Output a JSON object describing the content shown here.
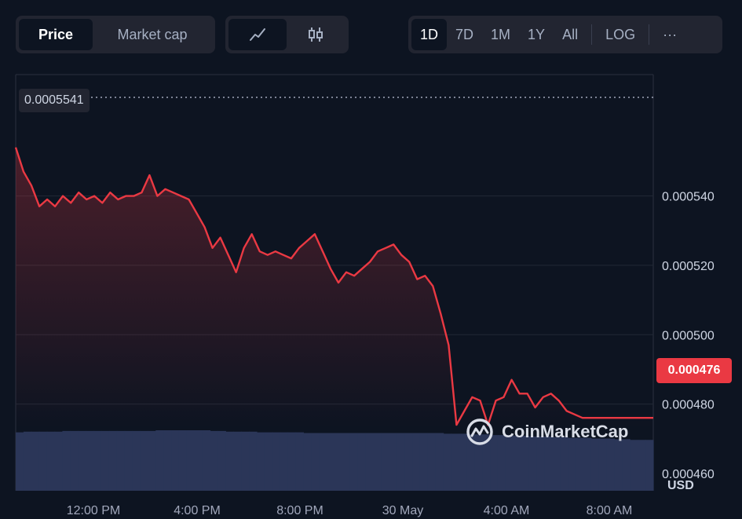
{
  "toolbar": {
    "type_tabs": [
      {
        "label": "Price",
        "active": true
      },
      {
        "label": "Market cap",
        "active": false
      }
    ],
    "style_buttons": [
      {
        "icon": "line-chart-icon",
        "active": true
      },
      {
        "icon": "candlestick-chart-icon",
        "active": false
      }
    ],
    "range_tabs": [
      {
        "label": "1D",
        "active": true
      },
      {
        "label": "7D",
        "active": false
      },
      {
        "label": "1M",
        "active": false
      },
      {
        "label": "1Y",
        "active": false
      },
      {
        "label": "All",
        "active": false
      }
    ],
    "log_label": "LOG",
    "more_label": "···"
  },
  "price_marker": "0.0005541",
  "last_price": "0.000476",
  "watermark": "CoinMarketCap",
  "currency": "USD",
  "colors": {
    "background": "#0d1421",
    "line": "#ea3943",
    "volume": "#2b3658",
    "badge": "#ea3943"
  },
  "chart_data": {
    "type": "area",
    "title": "",
    "xlabel": "",
    "ylabel": "",
    "y_ticks": [
      "0.000540",
      "0.000520",
      "0.000500",
      "0.000480",
      "0.000460"
    ],
    "x_ticks": [
      "12:00 PM",
      "4:00 PM",
      "8:00 PM",
      "30 May",
      "4:00 AM",
      "8:00 AM"
    ],
    "ylim": [
      0.000455,
      0.000575
    ],
    "grid": true,
    "series": [
      {
        "x_hours": [
          0,
          0.2,
          0.4,
          0.7,
          1.0,
          1.3,
          1.6,
          1.9,
          2.2,
          2.5,
          2.8,
          3.1,
          3.4,
          3.7,
          4.0,
          4.3,
          4.6,
          4.9,
          5.2,
          5.5,
          5.8,
          6.1,
          6.4,
          6.7,
          7.0,
          7.3,
          7.6,
          7.9,
          8.2,
          8.5,
          8.8,
          9.1,
          9.4,
          9.7,
          10.0,
          10.3,
          10.6,
          10.9,
          11.2,
          11.5,
          11.8,
          12.1,
          12.4,
          12.7,
          13.0,
          13.3,
          13.6,
          13.9,
          14.2,
          14.5,
          14.8,
          15.1,
          15.4,
          15.7,
          16.0,
          16.3,
          16.6,
          16.9,
          17.2,
          17.5,
          17.8,
          18.1,
          18.4,
          18.7,
          19.0,
          19.3,
          19.6,
          19.9,
          20.2,
          20.5,
          20.8,
          21.1,
          21.4,
          21.7,
          22.0,
          22.3,
          22.6,
          22.9,
          23.2,
          23.5,
          23.8,
          24.0
        ],
        "values": [
          0.000554,
          0.000547,
          0.000543,
          0.000537,
          0.000539,
          0.000537,
          0.00054,
          0.000538,
          0.000541,
          0.000539,
          0.00054,
          0.000538,
          0.000541,
          0.000539,
          0.00054,
          0.00054,
          0.000541,
          0.000546,
          0.00054,
          0.000542,
          0.000541,
          0.00054,
          0.000539,
          0.000535,
          0.000531,
          0.000525,
          0.000528,
          0.000523,
          0.000518,
          0.000525,
          0.000529,
          0.000524,
          0.000523,
          0.000524,
          0.000523,
          0.000522,
          0.000525,
          0.000527,
          0.000529,
          0.000524,
          0.000519,
          0.000515,
          0.000518,
          0.000517,
          0.000519,
          0.000521,
          0.000524,
          0.000525,
          0.000526,
          0.000523,
          0.000521,
          0.000516,
          0.000517,
          0.000514,
          0.000506,
          0.000497,
          0.000474,
          0.000478,
          0.000482,
          0.000481,
          0.000474,
          0.000481,
          0.000482,
          0.000487,
          0.000483,
          0.000483,
          0.000479,
          0.000482,
          0.000483,
          0.000481,
          0.000478,
          0.000477,
          0.000476,
          0.000476,
          0.000476,
          0.000476,
          0.000476,
          0.000476,
          0.000476,
          0.000476,
          0.000476,
          0.000476
        ],
        "volume_relative": [
          0.85,
          0.86,
          0.86,
          0.86,
          0.86,
          0.86,
          0.87,
          0.87,
          0.87,
          0.87,
          0.87,
          0.87,
          0.87,
          0.87,
          0.87,
          0.87,
          0.87,
          0.87,
          0.88,
          0.88,
          0.88,
          0.88,
          0.88,
          0.88,
          0.88,
          0.87,
          0.87,
          0.86,
          0.86,
          0.86,
          0.86,
          0.85,
          0.85,
          0.85,
          0.85,
          0.85,
          0.85,
          0.84,
          0.84,
          0.84,
          0.84,
          0.84,
          0.84,
          0.84,
          0.84,
          0.84,
          0.84,
          0.84,
          0.84,
          0.84,
          0.84,
          0.84,
          0.84,
          0.84,
          0.84,
          0.83,
          0.83,
          0.83,
          0.82,
          0.82,
          0.82,
          0.81,
          0.81,
          0.81,
          0.8,
          0.8,
          0.79,
          0.79,
          0.79,
          0.78,
          0.78,
          0.77,
          0.77,
          0.77,
          0.76,
          0.76,
          0.76,
          0.75,
          0.75,
          0.74,
          0.74,
          0.74
        ]
      }
    ]
  }
}
